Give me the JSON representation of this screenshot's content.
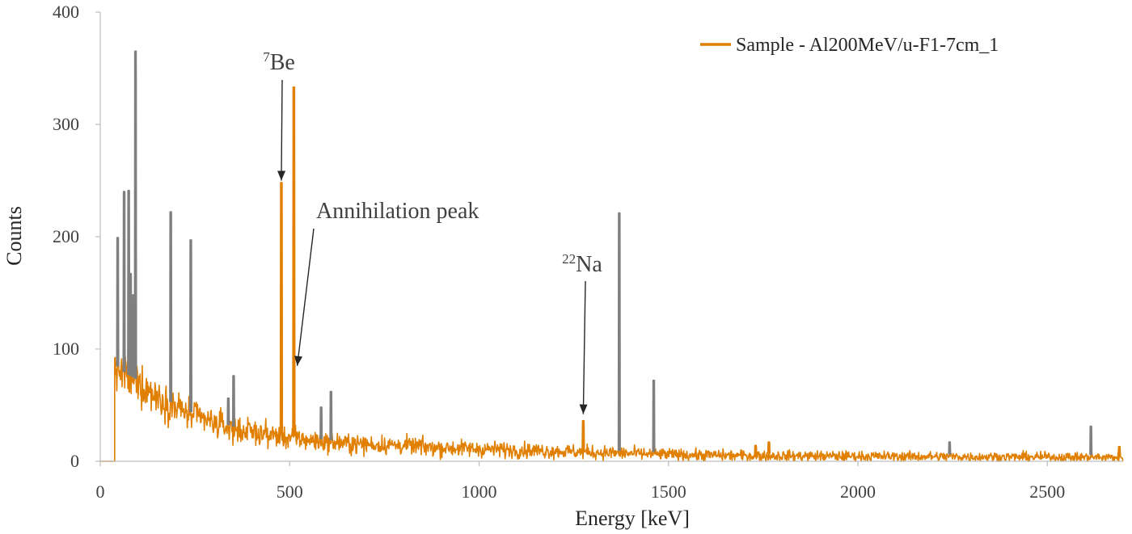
{
  "chart_data": {
    "type": "line",
    "xlabel": "Energy [keV]",
    "ylabel": "Counts",
    "xlim": [
      0,
      2700
    ],
    "ylim": [
      0,
      400
    ],
    "x_ticks": [
      0,
      500,
      1000,
      1500,
      2000,
      2500
    ],
    "y_ticks": [
      0,
      100,
      200,
      300,
      400
    ],
    "grid": false,
    "legend_position": "top-right",
    "colors": {
      "sample": "#E07F00",
      "background": "#7F7F7F"
    },
    "series": [
      {
        "name": "Sample - Al200MeV/u-F1-7cm_1",
        "style": "noisy spectrum",
        "start_energy": 38,
        "continuum": [
          [
            38,
            85
          ],
          [
            60,
            78
          ],
          [
            100,
            70
          ],
          [
            150,
            58
          ],
          [
            200,
            48
          ],
          [
            250,
            40
          ],
          [
            300,
            34
          ],
          [
            350,
            29
          ],
          [
            400,
            26
          ],
          [
            500,
            21
          ],
          [
            600,
            17
          ],
          [
            700,
            15
          ],
          [
            800,
            14
          ],
          [
            900,
            12
          ],
          [
            1000,
            11
          ],
          [
            1100,
            10
          ],
          [
            1200,
            9
          ],
          [
            1300,
            8
          ],
          [
            1400,
            7
          ],
          [
            1500,
            6
          ],
          [
            1700,
            5
          ],
          [
            2000,
            4.5
          ],
          [
            2300,
            4
          ],
          [
            2700,
            3.5
          ]
        ],
        "peaks": [
          {
            "energy": 478,
            "counts": 248
          },
          {
            "energy": 511,
            "counts": 333
          },
          {
            "energy": 1275,
            "counts": 36
          },
          {
            "energy": 1730,
            "counts": 14
          },
          {
            "energy": 1765,
            "counts": 17
          },
          {
            "energy": 2690,
            "counts": 13
          }
        ]
      },
      {
        "name": "",
        "style": "background lines",
        "peaks": [
          {
            "energy": 46,
            "counts": 199
          },
          {
            "energy": 63,
            "counts": 240
          },
          {
            "energy": 75,
            "counts": 241
          },
          {
            "energy": 80,
            "counts": 167
          },
          {
            "energy": 87,
            "counts": 148
          },
          {
            "energy": 93,
            "counts": 365
          },
          {
            "energy": 186,
            "counts": 222
          },
          {
            "energy": 239,
            "counts": 197
          },
          {
            "energy": 338,
            "counts": 56
          },
          {
            "energy": 352,
            "counts": 76
          },
          {
            "energy": 583,
            "counts": 48
          },
          {
            "energy": 609,
            "counts": 62
          },
          {
            "energy": 1370,
            "counts": 221
          },
          {
            "energy": 1461,
            "counts": 72
          },
          {
            "energy": 2242,
            "counts": 17
          },
          {
            "energy": 2615,
            "counts": 31
          }
        ]
      }
    ],
    "annotations": [
      {
        "sup": "7",
        "text": "Be",
        "arrow_to": [
          478,
          250
        ]
      },
      {
        "sup": "",
        "text": "Annihilation peak",
        "arrow_to": [
          520,
          85
        ]
      },
      {
        "sup": "22",
        "text": "Na",
        "arrow_to": [
          1275,
          42
        ]
      }
    ]
  }
}
